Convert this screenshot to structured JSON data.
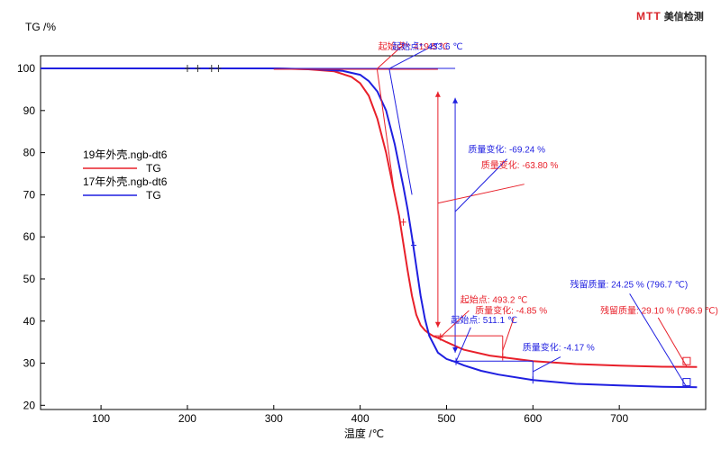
{
  "logo": {
    "mark": "MTT",
    "name": "美信检测"
  },
  "chart_data": {
    "type": "line",
    "title": "",
    "xlabel": "温度 /℃",
    "ylabel": "TG /%",
    "xlim": [
      30,
      800
    ],
    "ylim": [
      19,
      103
    ],
    "xticks": [
      100,
      200,
      300,
      400,
      500,
      600,
      700
    ],
    "yticks": [
      20,
      30,
      40,
      50,
      60,
      70,
      80,
      90,
      100
    ],
    "grid": false,
    "legend": {
      "placement": "left",
      "entries": [
        {
          "file": "19年外壳.ngb-dt6",
          "label": "TG",
          "color": "#e8202a"
        },
        {
          "file": "17年外壳.ngb-dt6",
          "label": "TG",
          "color": "#1f1fe0"
        }
      ]
    },
    "series": [
      {
        "file": "19年外壳.ngb-dt6",
        "color": "#e8202a",
        "x": [
          30,
          100,
          200,
          300,
          340,
          370,
          390,
          400,
          410,
          420,
          430,
          440,
          445,
          450,
          455,
          460,
          465,
          470,
          475,
          480,
          485,
          490,
          500,
          520,
          550,
          600,
          650,
          700,
          750,
          790
        ],
        "y": [
          100,
          100,
          100,
          100,
          99.8,
          99.3,
          98.0,
          96.5,
          93.5,
          88.0,
          80.0,
          70.0,
          65.0,
          58.5,
          52.0,
          46.0,
          41.5,
          39.0,
          37.8,
          37.0,
          36.4,
          36.0,
          35.0,
          33.2,
          31.8,
          30.5,
          29.8,
          29.4,
          29.15,
          29.1
        ]
      },
      {
        "file": "17年外壳.ngb-dt6",
        "color": "#1f1fe0",
        "x": [
          30,
          100,
          200,
          300,
          350,
          380,
          400,
          410,
          420,
          430,
          440,
          450,
          455,
          460,
          465,
          470,
          475,
          480,
          490,
          500,
          510,
          520,
          540,
          560,
          600,
          650,
          700,
          750,
          790
        ],
        "y": [
          100,
          100,
          100,
          100,
          99.8,
          99.4,
          98.5,
          97.0,
          94.5,
          90.0,
          82.0,
          72.0,
          66.5,
          60.0,
          53.0,
          46.0,
          40.5,
          36.5,
          32.5,
          31.0,
          30.3,
          29.5,
          28.2,
          27.3,
          26.0,
          25.1,
          24.7,
          24.4,
          24.3
        ]
      }
    ],
    "annotations": [
      {
        "text": "起始点*: 419.5 ℃",
        "color": "#e8202a"
      },
      {
        "text": "起始点*: 433.6 ℃",
        "color": "#1f1fe0"
      },
      {
        "text": "质量变化: -69.24 %",
        "color": "#1f1fe0"
      },
      {
        "text": "质量变化: -63.80 %",
        "color": "#e8202a"
      },
      {
        "text": "起始点: 493.2 ℃",
        "color": "#e8202a"
      },
      {
        "text": "质量变化: -4.85 %",
        "color": "#e8202a"
      },
      {
        "text": "起始点: 511.1 ℃",
        "color": "#1f1fe0"
      },
      {
        "text": "质量变化: -4.17 %",
        "color": "#1f1fe0"
      },
      {
        "text": "残留质量: 24.25 % (796.7 ℃)",
        "color": "#1f1fe0"
      },
      {
        "text": "残留质量: 29.10 % (796.9 ℃)",
        "color": "#e8202a"
      }
    ]
  }
}
